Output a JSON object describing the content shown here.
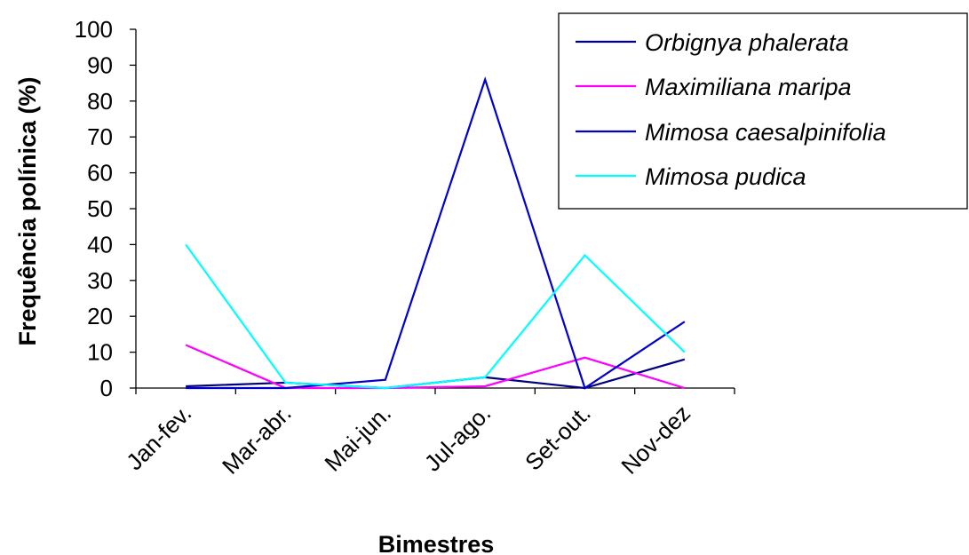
{
  "chart_data": {
    "type": "line",
    "title": "",
    "xlabel": "Bimestres",
    "ylabel": "Frequência polínica (%)",
    "categories": [
      "Jan-fev.",
      "Mar-abr.",
      "Mai-jun.",
      "Jul-ago.",
      "Set-out.",
      "Nov-dez"
    ],
    "ylim": [
      0,
      100
    ],
    "yticks": [
      "0",
      "10",
      "20",
      "30",
      "40",
      "50",
      "60",
      "70",
      "80",
      "90",
      "100"
    ],
    "grid": false,
    "legend_position": "top-right",
    "series": [
      {
        "name": "Orbignya phalerata",
        "color": "#000080",
        "values": [
          0.5,
          1.5,
          0,
          3,
          0,
          8
        ]
      },
      {
        "name": "Maximiliana maripa",
        "color": "#FF00FF",
        "values": [
          12,
          0,
          0,
          0.5,
          8.5,
          0
        ]
      },
      {
        "name": "Mimosa caesalpinifolia",
        "color": "#0000CC",
        "values": [
          0,
          0,
          2.3,
          86,
          0,
          18.5
        ]
      },
      {
        "name": "Mimosa pudica",
        "color": "#00FFFF",
        "values": [
          40,
          1.5,
          0,
          3,
          37,
          10
        ]
      }
    ]
  }
}
